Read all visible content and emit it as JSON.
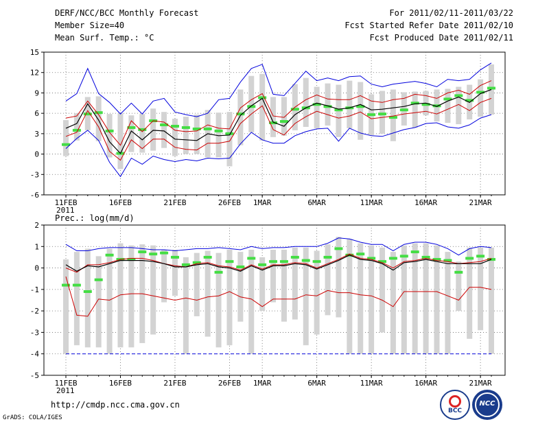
{
  "header": {
    "title": "DERF/NCC/BCC Monthly Forecast",
    "member_size": "Member Size=40",
    "variable": "Mean Surf. Temp.: °C",
    "period": "For 2011/02/11-2011/03/22",
    "refer_date": "Fcst Started Refer Date 2011/02/10",
    "produced_date": "Fcst Produced Date 2011/02/11"
  },
  "footer": {
    "url": "http://cmdp.ncc.cma.gov.cn",
    "credit": "GrADS: COLA/IGES",
    "logo1_text": "BCC",
    "logo2_text": "NCC"
  },
  "colors": {
    "range_bar": "#d3d3d3",
    "obs": "#44dd44",
    "mean": "#000000",
    "spread": "#cc0000",
    "extreme": "#0000dd"
  },
  "chart_data": [
    {
      "type": "line",
      "title": "Mean Surf. Temp.: °C",
      "x_tick_labels": [
        "11FEB",
        "16FEB",
        "21FEB",
        "26FEB",
        "1MAR",
        "6MAR",
        "11MAR",
        "16MAR",
        "21MAR"
      ],
      "x_tick_days": [
        0,
        5,
        10,
        15,
        18,
        23,
        28,
        33,
        38
      ],
      "year_label": "2011",
      "ylim": [
        -6,
        15
      ],
      "yticks": [
        -6,
        -3,
        0,
        3,
        6,
        9,
        12,
        15
      ],
      "days": 40,
      "series": [
        {
          "name": "mean",
          "values": [
            3.8,
            4.5,
            7.4,
            5.0,
            1.8,
            0.1,
            3.4,
            2.1,
            3.5,
            3.4,
            2.2,
            2.1,
            2.0,
            3.0,
            2.7,
            2.8,
            5.7,
            7.1,
            8.2,
            4.7,
            4.1,
            5.8,
            6.8,
            7.5,
            7.1,
            6.6,
            6.8,
            7.3,
            6.5,
            6.6,
            6.8,
            7.0,
            7.4,
            7.5,
            7.0,
            7.8,
            8.4,
            7.6,
            8.9,
            9.5
          ]
        },
        {
          "name": "upper_spread",
          "values": [
            5.3,
            5.6,
            7.8,
            5.8,
            3.2,
            1.3,
            4.9,
            3.3,
            4.9,
            4.7,
            3.5,
            3.3,
            3.4,
            4.3,
            3.8,
            3.7,
            6.8,
            8.0,
            8.9,
            5.6,
            5.4,
            6.9,
            8.0,
            8.7,
            8.1,
            8.0,
            8.0,
            8.6,
            7.8,
            7.6,
            8.0,
            8.2,
            8.8,
            8.6,
            8.2,
            9.0,
            9.4,
            8.8,
            10.1,
            10.8
          ]
        },
        {
          "name": "lower_spread",
          "values": [
            2.6,
            3.2,
            6.4,
            4.0,
            0.4,
            -0.9,
            2.1,
            0.8,
            2.2,
            2.2,
            1.0,
            0.7,
            0.6,
            1.6,
            1.6,
            1.9,
            4.5,
            5.9,
            7.1,
            3.6,
            2.8,
            4.5,
            5.5,
            6.3,
            5.8,
            5.3,
            5.6,
            6.2,
            5.2,
            5.4,
            5.6,
            5.9,
            6.1,
            6.3,
            5.9,
            6.6,
            7.3,
            6.4,
            7.6,
            8.2
          ]
        },
        {
          "name": "maximum",
          "values": [
            7.8,
            8.9,
            12.6,
            8.9,
            7.6,
            5.9,
            7.5,
            5.9,
            7.8,
            8.2,
            6.2,
            5.8,
            5.5,
            6.0,
            8.0,
            8.2,
            10.6,
            12.6,
            13.2,
            8.8,
            8.6,
            10.4,
            12.2,
            10.8,
            11.2,
            10.8,
            11.4,
            11.5,
            10.3,
            9.9,
            10.3,
            10.5,
            10.7,
            10.4,
            9.9,
            11.0,
            10.8,
            11.0,
            12.4,
            13.4
          ]
        },
        {
          "name": "minimum",
          "values": [
            0.8,
            2.3,
            3.5,
            2.0,
            -1.2,
            -3.3,
            -0.6,
            -1.5,
            -0.3,
            -0.8,
            -1.1,
            -0.8,
            -1.0,
            -0.6,
            -0.7,
            -0.6,
            1.5,
            3.2,
            2.1,
            1.6,
            1.6,
            2.7,
            3.3,
            3.7,
            3.8,
            1.9,
            3.8,
            3.1,
            2.7,
            2.6,
            3.1,
            3.6,
            3.9,
            4.5,
            4.6,
            4.0,
            3.8,
            4.3,
            5.3,
            5.8
          ]
        },
        {
          "name": "observation",
          "values": [
            1.4,
            3.5,
            5.9,
            6.1,
            3.4,
            0.1,
            3.9,
            3.6,
            4.9,
            4.3,
            4.1,
            3.9,
            3.7,
            3.7,
            3.4,
            3.0,
            5.9,
            7.0,
            8.3,
            4.6,
            4.8,
            6.6,
            6.8,
            7.3,
            7.0,
            6.5,
            6.8,
            7.0,
            5.8,
            5.9,
            5.4,
            6.5,
            7.5,
            7.3,
            7.1,
            8.1,
            8.6,
            7.9,
            9.1,
            9.7
          ]
        },
        {
          "name": "bar_top",
          "values": [
            5.0,
            6.0,
            8.4,
            8.5,
            5.9,
            6.0,
            5.7,
            5.9,
            6.7,
            6.2,
            5.2,
            5.5,
            5.8,
            6.5,
            6.1,
            6.2,
            9.5,
            11.5,
            11.8,
            8.4,
            8.4,
            10.3,
            11.2,
            9.9,
            10.4,
            10.2,
            10.8,
            10.6,
            8.8,
            9.3,
            9.5,
            9.1,
            9.2,
            9.3,
            9.5,
            9.6,
            9.9,
            10.2,
            11.0,
            13.2
          ]
        },
        {
          "name": "bar_bottom",
          "values": [
            -0.3,
            2.0,
            3.5,
            1.9,
            -0.5,
            -2.2,
            0.3,
            0.2,
            0.5,
            0.9,
            -0.3,
            0.0,
            0.0,
            -0.5,
            -0.5,
            -1.8,
            1.3,
            3.2,
            2.0,
            2.5,
            2.7,
            3.5,
            4.0,
            3.8,
            4.2,
            2.5,
            3.8,
            2.1,
            2.8,
            3.0,
            1.9,
            4.2,
            3.9,
            5.7,
            4.8,
            4.6,
            4.4,
            5.1,
            5.5,
            5.8
          ]
        }
      ]
    },
    {
      "type": "line",
      "title": "Prec.: log(mm/d)",
      "x_tick_labels": [
        "11FEB",
        "16FEB",
        "21FEB",
        "26FEB",
        "1MAR",
        "6MAR",
        "11MAR",
        "16MAR",
        "21MAR"
      ],
      "x_tick_days": [
        0,
        5,
        10,
        15,
        18,
        23,
        28,
        33,
        38
      ],
      "year_label": "2011",
      "ylim": [
        -5,
        2
      ],
      "yticks": [
        -5,
        -4,
        -3,
        -2,
        -1,
        0,
        1,
        2
      ],
      "days": 40,
      "series": [
        {
          "name": "mean",
          "values": [
            0.15,
            -0.15,
            0.1,
            0.05,
            0.2,
            0.35,
            0.35,
            0.35,
            0.3,
            0.2,
            0.05,
            0.05,
            0.15,
            0.2,
            0.05,
            0.0,
            -0.15,
            0.1,
            -0.1,
            0.1,
            0.1,
            0.2,
            0.15,
            -0.05,
            0.15,
            0.35,
            0.6,
            0.4,
            0.35,
            0.2,
            -0.1,
            0.25,
            0.3,
            0.4,
            0.3,
            0.2,
            0.2,
            0.2,
            0.2,
            0.4
          ]
        },
        {
          "name": "upper_spread",
          "values": [
            0.0,
            -0.2,
            0.15,
            0.15,
            0.25,
            0.4,
            0.45,
            0.45,
            0.35,
            0.2,
            0.1,
            0.05,
            0.2,
            0.25,
            0.1,
            0.05,
            -0.1,
            0.15,
            -0.05,
            0.15,
            0.15,
            0.25,
            0.2,
            0.0,
            0.2,
            0.4,
            0.65,
            0.45,
            0.4,
            0.25,
            0.0,
            0.3,
            0.35,
            0.45,
            0.35,
            0.3,
            0.2,
            0.25,
            0.3,
            0.45
          ]
        },
        {
          "name": "lower_spread",
          "values": [
            -0.4,
            -2.2,
            -2.25,
            -1.45,
            -1.5,
            -1.25,
            -1.2,
            -1.2,
            -1.3,
            -1.4,
            -1.5,
            -1.4,
            -1.5,
            -1.35,
            -1.3,
            -1.1,
            -1.35,
            -1.45,
            -1.8,
            -1.45,
            -1.45,
            -1.45,
            -1.25,
            -1.3,
            -1.05,
            -1.15,
            -1.15,
            -1.25,
            -1.3,
            -1.5,
            -1.8,
            -1.1,
            -1.1,
            -1.1,
            -1.1,
            -1.3,
            -1.5,
            -0.9,
            -0.9,
            -1.0
          ]
        },
        {
          "name": "maximum",
          "values": [
            1.1,
            0.8,
            0.8,
            0.9,
            0.95,
            0.95,
            0.95,
            0.9,
            0.85,
            0.85,
            0.8,
            0.85,
            0.9,
            0.9,
            0.95,
            0.9,
            0.85,
            1.0,
            0.9,
            0.95,
            0.95,
            1.0,
            1.0,
            1.0,
            1.15,
            1.4,
            1.35,
            1.2,
            1.1,
            1.1,
            0.8,
            1.1,
            1.2,
            1.2,
            1.1,
            0.9,
            0.6,
            0.9,
            1.0,
            0.95
          ]
        },
        {
          "name": "minimum",
          "values": [
            -4.0,
            -4.0,
            -4.0,
            -4.0,
            -4.0,
            -4.0,
            -4.0,
            -4.0,
            -4.0,
            -4.0,
            -4.0,
            -4.0,
            -4.0,
            -4.0,
            -4.0,
            -4.0,
            -4.0,
            -4.0,
            -4.0,
            -4.0,
            -4.0,
            -4.0,
            -4.0,
            -4.0,
            -4.0,
            -4.0,
            -4.0,
            -4.0,
            -4.0,
            -4.0,
            -4.0,
            -4.0,
            -4.0,
            -4.0,
            -4.0,
            -4.0,
            -4.0,
            -4.0,
            -4.0,
            -4.0
          ]
        },
        {
          "name": "observation",
          "values": [
            -0.8,
            -0.8,
            -1.1,
            -0.55,
            0.6,
            0.4,
            0.4,
            0.75,
            0.65,
            0.7,
            0.5,
            0.15,
            0.25,
            0.5,
            -0.2,
            0.3,
            0.05,
            0.45,
            0.15,
            0.3,
            0.3,
            0.5,
            0.35,
            0.3,
            0.5,
            0.9,
            0.6,
            0.65,
            0.45,
            0.3,
            0.45,
            0.55,
            0.75,
            0.5,
            0.4,
            0.35,
            -0.2,
            0.45,
            0.55,
            0.4
          ]
        },
        {
          "name": "bar_top",
          "values": [
            0.4,
            0.75,
            0.9,
            0.55,
            0.9,
            1.15,
            1.05,
            1.1,
            1.05,
            0.85,
            0.85,
            0.5,
            0.7,
            0.8,
            0.7,
            0.85,
            0.75,
            0.85,
            0.5,
            0.85,
            0.85,
            0.95,
            0.95,
            0.8,
            1.1,
            1.45,
            1.35,
            1.15,
            1.05,
            0.95,
            0.75,
            1.05,
            1.15,
            1.15,
            1.05,
            0.75,
            0.3,
            0.95,
            0.95,
            0.95
          ]
        },
        {
          "name": "bar_bottom",
          "values": [
            -4.0,
            -3.6,
            -3.7,
            -3.7,
            -4.0,
            -3.7,
            -3.7,
            -3.5,
            -3.1,
            -1.6,
            -1.3,
            -4.0,
            -2.25,
            -3.2,
            -3.7,
            -3.6,
            -2.5,
            -4.0,
            -2.0,
            -1.6,
            -2.5,
            -2.4,
            -3.6,
            -3.1,
            -2.2,
            -2.3,
            -4.0,
            -4.0,
            -4.0,
            -3.0,
            -4.0,
            -4.0,
            -4.0,
            -4.0,
            -4.0,
            -4.0,
            -2.0,
            -3.3,
            -2.9,
            -4.0
          ]
        }
      ]
    }
  ]
}
